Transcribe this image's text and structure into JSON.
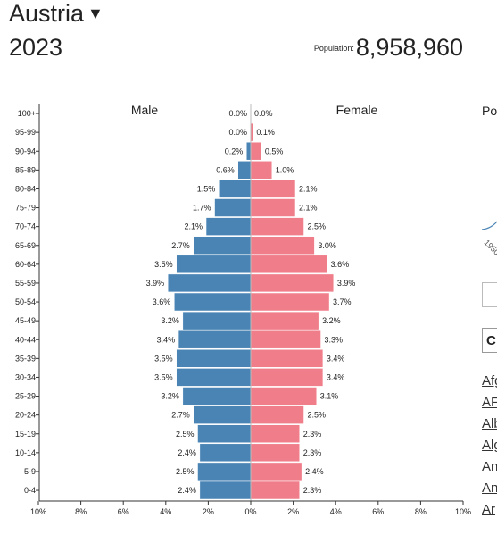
{
  "header": {
    "country": "Austria",
    "year": "2023",
    "population_label": "Population:",
    "population_value": "8,958,960"
  },
  "colors": {
    "male": "#4a84b5",
    "female": "#f07e8a"
  },
  "sidebar": {
    "title_fragment": "Po",
    "axis_fragment": "1950",
    "button_fragment": "C",
    "links": [
      "Afg",
      "AF",
      "Alb",
      "Alg",
      "An",
      "An",
      "Ar"
    ]
  },
  "chart_data": {
    "type": "bar",
    "title": "",
    "male_label": "Male",
    "female_label": "Female",
    "categories": [
      "100+",
      "95-99",
      "90-94",
      "85-89",
      "80-84",
      "75-79",
      "70-74",
      "65-69",
      "60-64",
      "55-59",
      "50-54",
      "45-49",
      "40-44",
      "35-39",
      "30-34",
      "25-29",
      "20-24",
      "15-19",
      "10-14",
      "5-9",
      "0-4"
    ],
    "series": [
      {
        "name": "Male",
        "values": [
          0.0,
          0.0,
          0.2,
          0.6,
          1.5,
          1.7,
          2.1,
          2.7,
          3.5,
          3.9,
          3.6,
          3.2,
          3.4,
          3.5,
          3.5,
          3.2,
          2.7,
          2.5,
          2.4,
          2.5,
          2.4
        ]
      },
      {
        "name": "Female",
        "values": [
          0.0,
          0.1,
          0.5,
          1.0,
          2.1,
          2.1,
          2.5,
          3.0,
          3.6,
          3.9,
          3.7,
          3.2,
          3.3,
          3.4,
          3.4,
          3.1,
          2.5,
          2.3,
          2.3,
          2.4,
          2.3
        ]
      }
    ],
    "x_ticks": [
      "10%",
      "8%",
      "6%",
      "4%",
      "2%",
      "0%",
      "2%",
      "4%",
      "6%",
      "8%",
      "10%"
    ],
    "xlim": [
      -10,
      10
    ]
  }
}
